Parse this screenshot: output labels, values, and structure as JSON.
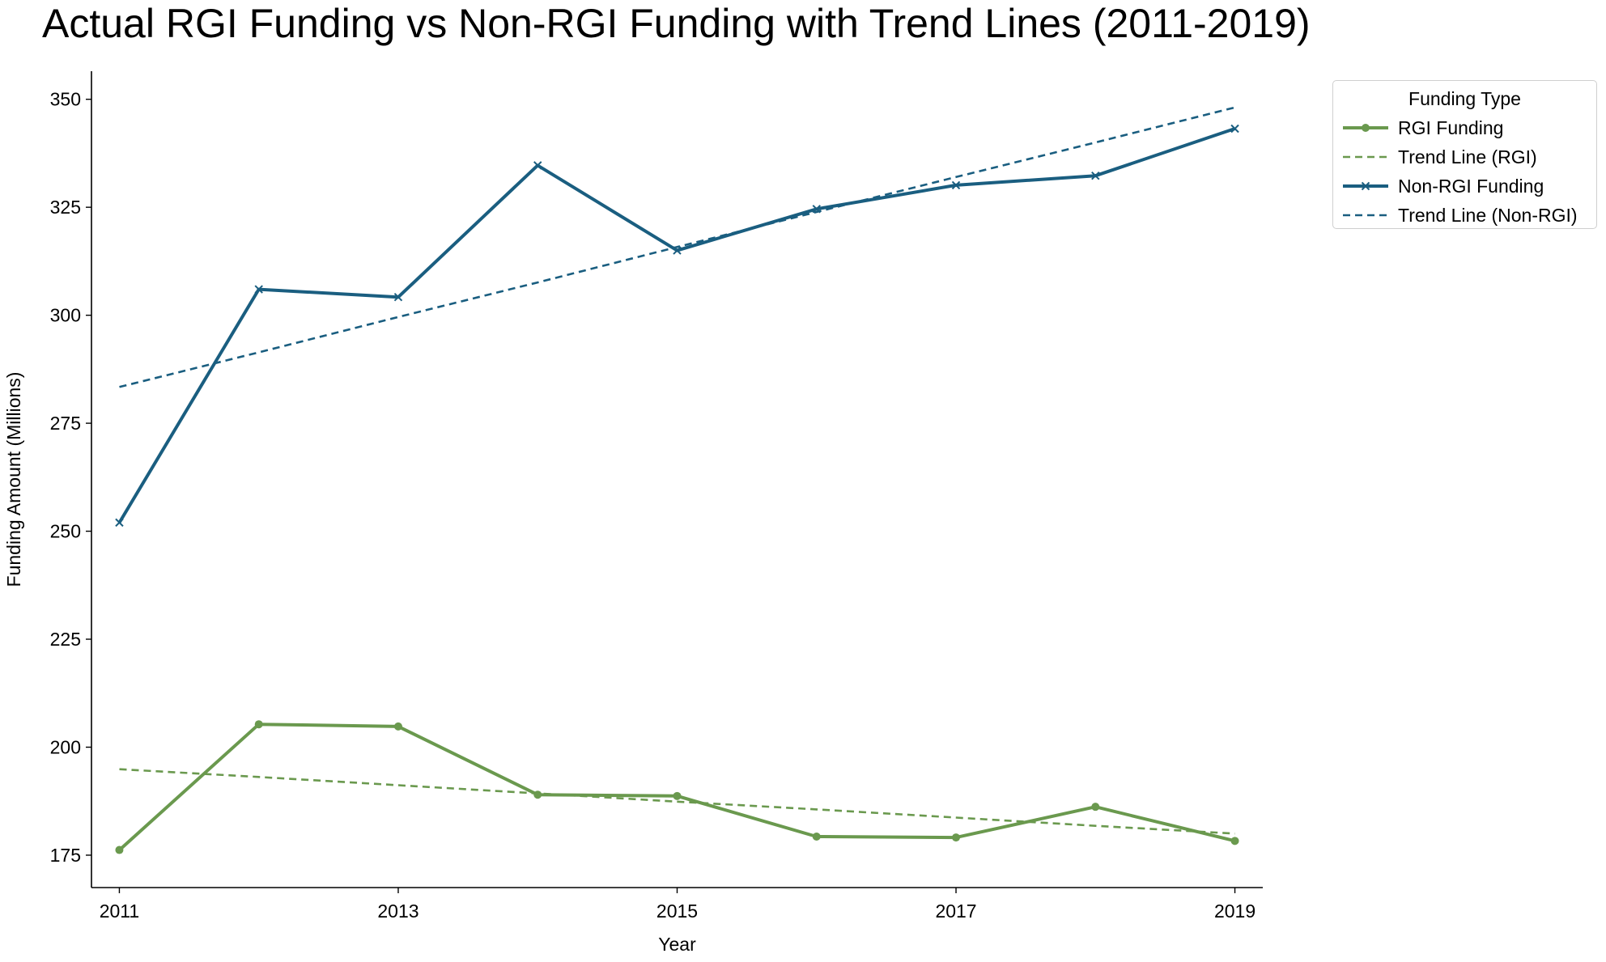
{
  "chart_data": {
    "type": "line",
    "title": "Actual RGI Funding vs Non-RGI Funding with Trend Lines (2011-2019)",
    "xlabel": "Year",
    "ylabel": "Funding Amount (Millions)",
    "x": [
      2011,
      2012,
      2013,
      2014,
      2015,
      2016,
      2017,
      2018,
      2019
    ],
    "xticks": [
      "2011",
      "2013",
      "2015",
      "2017",
      "2019"
    ],
    "yticks": [
      "175",
      "200",
      "225",
      "250",
      "275",
      "300",
      "325",
      "350"
    ],
    "xlim": [
      2010.8,
      2019.2
    ],
    "ylim": [
      167.5,
      356.5
    ],
    "grid": false,
    "legend": {
      "title": "Funding Type",
      "placement": "outside-top-right"
    },
    "series": [
      {
        "name": "RGI Funding",
        "color": "#6a994e",
        "style": "solid",
        "marker": "circle",
        "values": [
          176.2,
          205.3,
          204.8,
          189.0,
          188.7,
          179.3,
          179.1,
          186.2,
          178.3
        ]
      },
      {
        "name": "Trend Line (RGI)",
        "color": "#6a994e",
        "style": "dashed",
        "marker": "none",
        "values": [
          194.9,
          193.1,
          191.2,
          189.3,
          187.4,
          185.6,
          183.7,
          181.8,
          180.0
        ]
      },
      {
        "name": "Non-RGI Funding",
        "color": "#1a5e80",
        "style": "solid",
        "marker": "x",
        "values": [
          252.0,
          306.0,
          304.2,
          334.7,
          315.0,
          324.6,
          330.1,
          332.3,
          343.2
        ]
      },
      {
        "name": "Trend Line (Non-RGI)",
        "color": "#1a5e80",
        "style": "dashed",
        "marker": "none",
        "values": [
          283.4,
          291.4,
          299.6,
          307.6,
          315.8,
          323.9,
          332.0,
          340.0,
          348.1
        ]
      }
    ]
  }
}
